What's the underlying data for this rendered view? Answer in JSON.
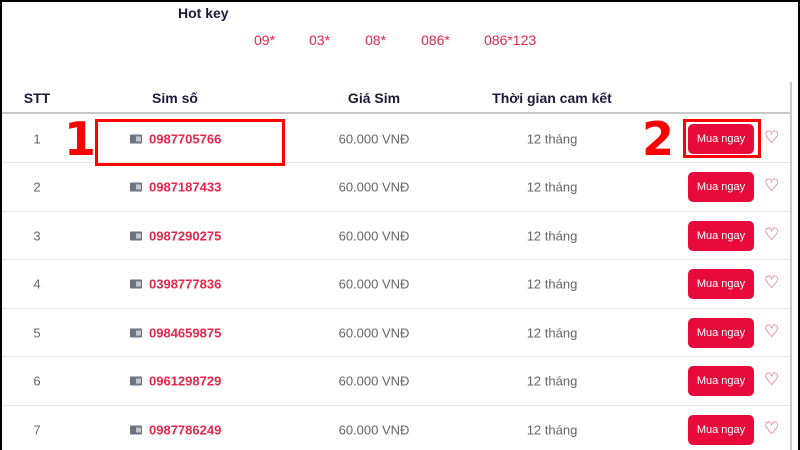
{
  "hotkey": {
    "title": "Hot key",
    "items": [
      "09*",
      "03*",
      "08*",
      "086*",
      "086*123"
    ]
  },
  "table": {
    "headers": [
      "STT",
      "Sim số",
      "Giá Sim",
      "Thời gian cam kết"
    ],
    "buy_label": "Mua ngay",
    "rows": [
      {
        "stt": "1",
        "number": "0987705766",
        "price": "60.000 VNĐ",
        "term": "12 tháng"
      },
      {
        "stt": "2",
        "number": "0987187433",
        "price": "60.000 VNĐ",
        "term": "12 tháng"
      },
      {
        "stt": "3",
        "number": "0987290275",
        "price": "60.000 VNĐ",
        "term": "12 tháng"
      },
      {
        "stt": "4",
        "number": "0398777836",
        "price": "60.000 VNĐ",
        "term": "12 tháng"
      },
      {
        "stt": "5",
        "number": "0984659875",
        "price": "60.000 VNĐ",
        "term": "12 tháng"
      },
      {
        "stt": "6",
        "number": "0961298729",
        "price": "60.000 VNĐ",
        "term": "12 tháng"
      },
      {
        "stt": "7",
        "number": "0987786249",
        "price": "60.000 VNĐ",
        "term": "12 tháng"
      }
    ]
  },
  "annotations": [
    "1",
    "2"
  ],
  "colors": {
    "accent": "#e80a3b",
    "annotation": "#ff0000"
  }
}
